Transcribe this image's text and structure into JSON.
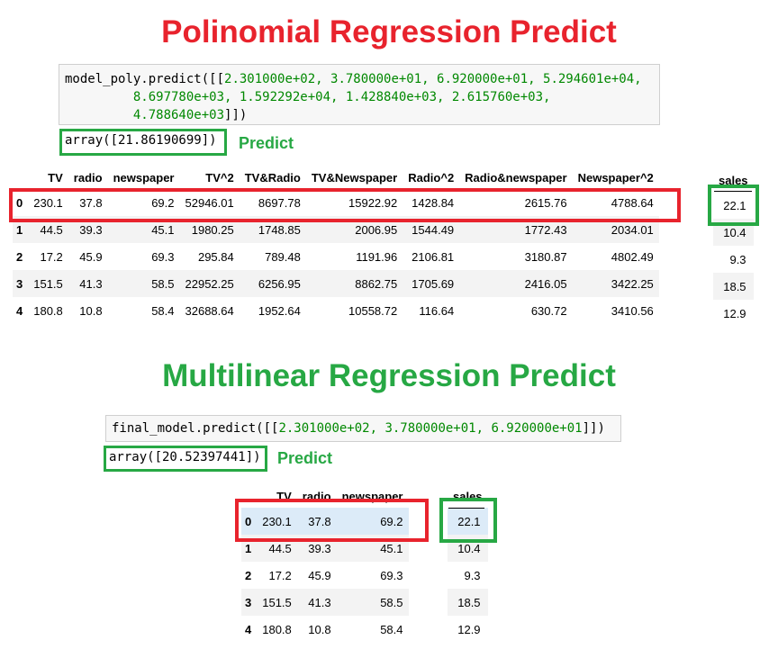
{
  "poly": {
    "title": "Polinomial Regression Predict",
    "code_prefix": "model_poly.predict([[",
    "code_line1_nums": "2.301000e+02, 3.780000e+01, 6.920000e+01, 5.294601e+04,",
    "code_line2_nums": "8.697780e+03, 1.592292e+04, 1.428840e+03, 2.615760e+03,",
    "code_line3_nums": "4.788640e+03",
    "code_suffix": "]])",
    "output": "array([21.86190699])",
    "predict_label": "Predict",
    "table": {
      "columns": [
        "TV",
        "radio",
        "newspaper",
        "TV^2",
        "TV&Radio",
        "TV&Newspaper",
        "Radio^2",
        "Radio&newspaper",
        "Newspaper^2"
      ],
      "rows": [
        {
          "idx": "0",
          "cells": [
            "230.1",
            "37.8",
            "69.2",
            "52946.01",
            "8697.78",
            "15922.92",
            "1428.84",
            "2615.76",
            "4788.64"
          ]
        },
        {
          "idx": "1",
          "cells": [
            "44.5",
            "39.3",
            "45.1",
            "1980.25",
            "1748.85",
            "2006.95",
            "1544.49",
            "1772.43",
            "2034.01"
          ]
        },
        {
          "idx": "2",
          "cells": [
            "17.2",
            "45.9",
            "69.3",
            "295.84",
            "789.48",
            "1191.96",
            "2106.81",
            "3180.87",
            "4802.49"
          ]
        },
        {
          "idx": "3",
          "cells": [
            "151.5",
            "41.3",
            "58.5",
            "22952.25",
            "6256.95",
            "8862.75",
            "1705.69",
            "2416.05",
            "3422.25"
          ]
        },
        {
          "idx": "4",
          "cells": [
            "180.8",
            "10.8",
            "58.4",
            "32688.64",
            "1952.64",
            "10558.72",
            "116.64",
            "630.72",
            "3410.56"
          ]
        }
      ]
    },
    "sales": {
      "header": "sales",
      "values": [
        "22.1",
        "10.4",
        "9.3",
        "18.5",
        "12.9"
      ]
    }
  },
  "multi": {
    "title": "Multilinear Regression Predict",
    "code_prefix": "final_model.predict([[",
    "code_nums": "2.301000e+02, 3.780000e+01, 6.920000e+01",
    "code_suffix": "]])",
    "output": "array([20.52397441])",
    "predict_label": "Predict",
    "table": {
      "columns": [
        "TV",
        "radio",
        "newspaper"
      ],
      "rows": [
        {
          "idx": "0",
          "cells": [
            "230.1",
            "37.8",
            "69.2"
          ]
        },
        {
          "idx": "1",
          "cells": [
            "44.5",
            "39.3",
            "45.1"
          ]
        },
        {
          "idx": "2",
          "cells": [
            "17.2",
            "45.9",
            "69.3"
          ]
        },
        {
          "idx": "3",
          "cells": [
            "151.5",
            "41.3",
            "58.5"
          ]
        },
        {
          "idx": "4",
          "cells": [
            "180.8",
            "10.8",
            "58.4"
          ]
        }
      ]
    },
    "sales": {
      "header": "sales",
      "values": [
        "22.1",
        "10.4",
        "9.3",
        "18.5",
        "12.9"
      ]
    }
  },
  "colors": {
    "highlight_red": "#e8232d",
    "highlight_green": "#27a844",
    "code_number": "#008800"
  }
}
